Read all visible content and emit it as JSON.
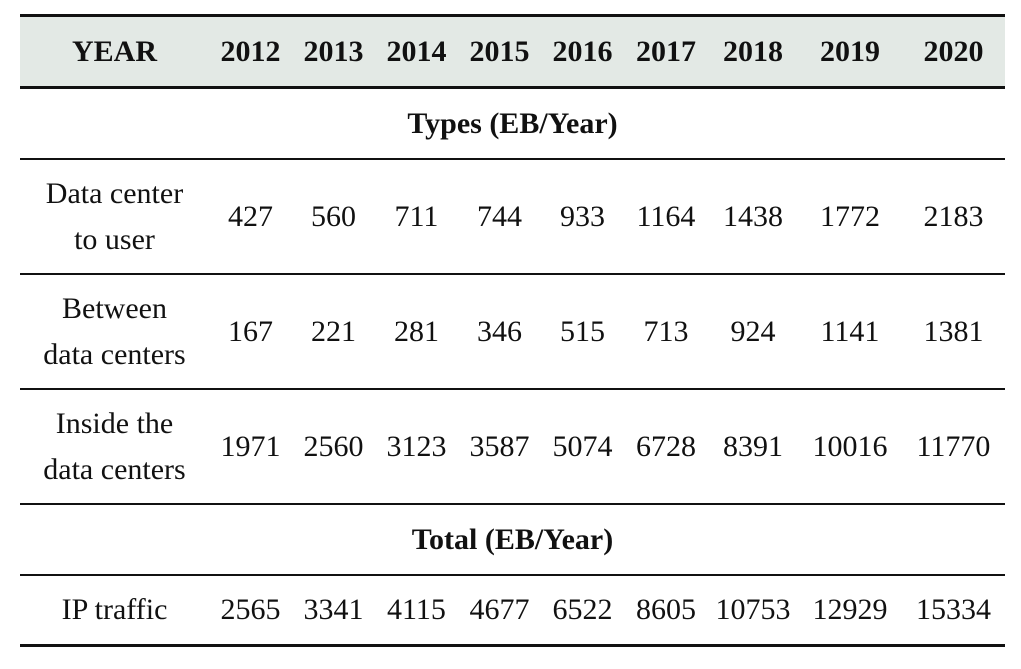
{
  "table": {
    "header": [
      "YEAR",
      "2012",
      "2013",
      "2014",
      "2015",
      "2016",
      "2017",
      "2018",
      "2019",
      "2020"
    ],
    "sections": [
      {
        "title": "Types (EB/Year)",
        "rows": [
          {
            "label_lines": [
              "Data center",
              "to user"
            ],
            "values": [
              "427",
              "560",
              "711",
              "744",
              "933",
              "1164",
              "1438",
              "1772",
              "2183"
            ]
          },
          {
            "label_lines": [
              "Between",
              "data centers"
            ],
            "values": [
              "167",
              "221",
              "281",
              "346",
              "515",
              "713",
              "924",
              "1141",
              "1381"
            ]
          },
          {
            "label_lines": [
              "Inside the",
              "data centers"
            ],
            "values": [
              "1971",
              "2560",
              "3123",
              "3587",
              "5074",
              "6728",
              "8391",
              "10016",
              "11770"
            ]
          }
        ]
      },
      {
        "title": "Total (EB/Year)",
        "rows": [
          {
            "label_lines": [
              "IP traffic"
            ],
            "values": [
              "2565",
              "3341",
              "4115",
              "4677",
              "6522",
              "8605",
              "10753",
              "12929",
              "15334"
            ]
          }
        ]
      }
    ]
  }
}
